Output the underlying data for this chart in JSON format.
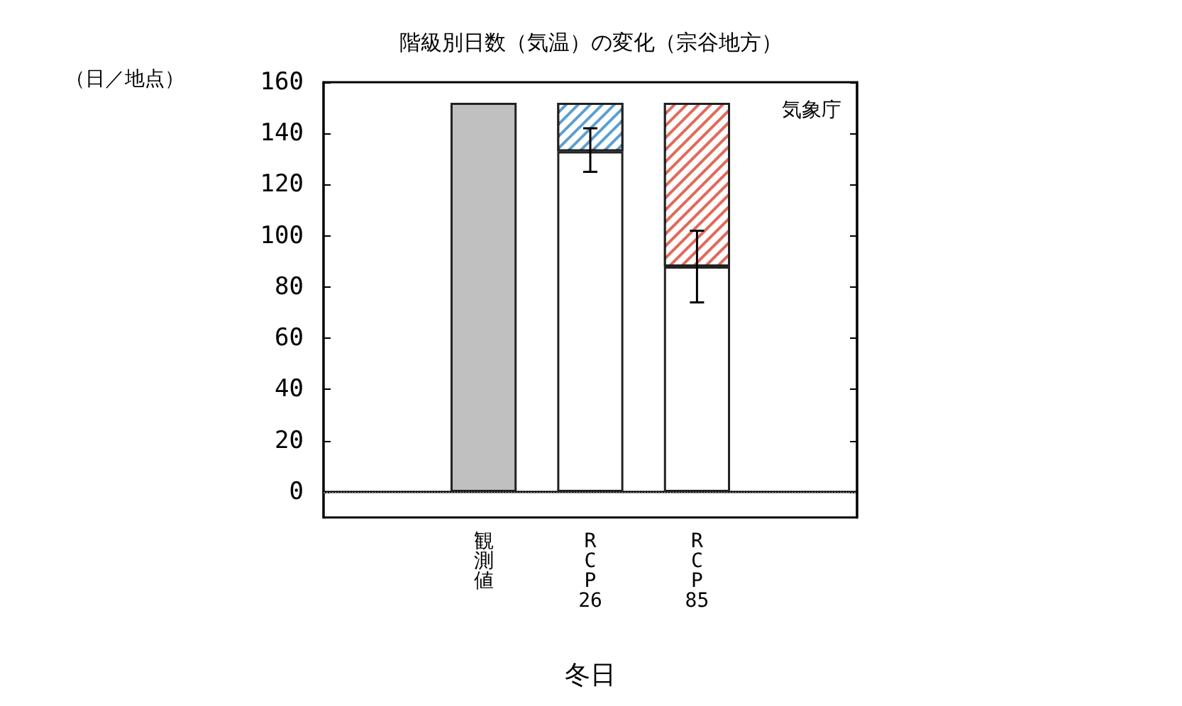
{
  "chart_data": {
    "type": "bar",
    "title": "階級別日数（気温）の変化（宗谷地方）",
    "ylabel": "（日／地点）",
    "xlabel": "冬日",
    "annotations": [
      "気象庁"
    ],
    "categories": [
      null,
      "観測値",
      "RCP26",
      "RCP85",
      null
    ],
    "stacked": true,
    "series": [
      {
        "colors": [
          null,
          "#c0c0c0",
          "#ffffff",
          "#ffffff",
          null
        ],
        "values": [
          null,
          152,
          133,
          88,
          null
        ],
        "errors": [
          null,
          null,
          [
            125,
            142
          ],
          [
            74,
            102
          ],
          null
        ]
      },
      {
        "colors": [
          null,
          null,
          "#5b9fd0",
          "#e06b5c",
          null
        ],
        "values": [
          null,
          null,
          19,
          64,
          null
        ]
      }
    ],
    "ylim": [
      -10,
      160
    ],
    "yticks": [
      0,
      20,
      40,
      60,
      80,
      100,
      120,
      140,
      160
    ],
    "ref_lines": [
      {
        "axis": "y",
        "value": 0,
        "color": "#808080",
        "line_style": "dotted"
      }
    ],
    "grid": false
  }
}
